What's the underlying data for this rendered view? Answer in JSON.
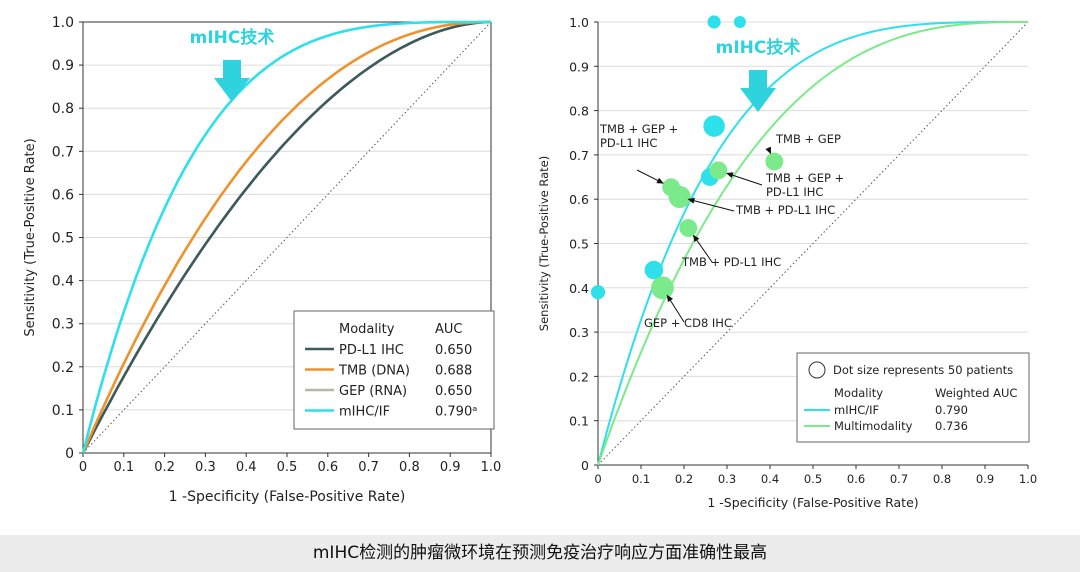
{
  "caption": "mIHC检测的肿瘤微环境在预测免疫治疗响应方面准确性最高",
  "chart_data": [
    {
      "type": "line",
      "xlabel": "1 -Specificity (False-Positive Rate)",
      "ylabel": "Sensitivity (True-Positive Rate)",
      "xlim": [
        0,
        1
      ],
      "ylim": [
        0,
        1
      ],
      "ticks": [
        "0",
        "0.1",
        "0.2",
        "0.3",
        "0.4",
        "0.5",
        "0.6",
        "0.7",
        "0.8",
        "0.9",
        "1.0"
      ],
      "grid": true,
      "legend_position": "bottom-right",
      "annotation": "mIHC技术",
      "legend_header": [
        "Modality",
        "AUC"
      ],
      "series": [
        {
          "name": "PD-L1 IHC",
          "auc": 0.65,
          "auc_label": "0.650",
          "color": "#3d5a5c"
        },
        {
          "name": "TMB (DNA)",
          "auc": 0.688,
          "auc_label": "0.688",
          "color": "#f0922b"
        },
        {
          "name": "GEP (RNA)",
          "auc": 0.65,
          "auc_label": "0.650",
          "color": "#b8b8a0"
        },
        {
          "name": "mIHC/IF",
          "auc": 0.79,
          "auc_label": "0.790ᵃ",
          "color": "#2ee0ea"
        }
      ]
    },
    {
      "type": "scatter",
      "xlabel": "1 -Specificity (False-Positive Rate)",
      "ylabel": "Sensitivity (True-Positive Rate)",
      "xlim": [
        0,
        1
      ],
      "ylim": [
        0,
        1
      ],
      "xticks": [
        "0",
        "0.1",
        "0.2",
        "0.3",
        "0.4",
        "0.5",
        "0.6",
        "0.7",
        "0.8",
        "0.9",
        "1.0"
      ],
      "yticks": [
        "0",
        "0.1",
        "0.2",
        "0.3",
        "0.4",
        "0.5",
        "0.6",
        "0.7",
        "0.8",
        "0.9",
        "1.0"
      ],
      "grid": true,
      "legend_position": "bottom-right",
      "annotation": "mIHC技术",
      "size_note": "Dot size represents 50 patients",
      "legend_header": [
        "Modality",
        "Weighted AUC"
      ],
      "series": [
        {
          "name": "mIHC/IF",
          "auc": 0.79,
          "auc_label": "0.790",
          "color": "#2ee0ea",
          "points": [
            {
              "x": 0,
              "y": 0.39,
              "n": 35
            },
            {
              "x": 0.13,
              "y": 0.44,
              "n": 60
            },
            {
              "x": 0.27,
              "y": 0.765,
              "n": 80
            },
            {
              "x": 0.26,
              "y": 0.65,
              "n": 55
            },
            {
              "x": 0.27,
              "y": 1.0,
              "n": 30
            },
            {
              "x": 0.33,
              "y": 1.0,
              "n": 25
            }
          ]
        },
        {
          "name": "Multimodality",
          "auc": 0.736,
          "auc_label": "0.736",
          "color": "#7aea8a",
          "points": [
            {
              "x": 0.17,
              "y": 0.627,
              "n": 55
            },
            {
              "x": 0.19,
              "y": 0.605,
              "n": 85
            },
            {
              "x": 0.28,
              "y": 0.665,
              "n": 55
            },
            {
              "x": 0.41,
              "y": 0.685,
              "n": 55
            },
            {
              "x": 0.21,
              "y": 0.535,
              "n": 55
            },
            {
              "x": 0.15,
              "y": 0.4,
              "n": 90
            }
          ]
        }
      ],
      "labels": [
        {
          "text": [
            "TMB + GEP +",
            "PD-L1 IHC"
          ],
          "target": [
            0.17,
            0.627
          ]
        },
        {
          "text": [
            "TMB + GEP"
          ],
          "target": [
            0.41,
            0.685
          ]
        },
        {
          "text": [
            "TMB + GEP +",
            "PD-L1 IHC"
          ],
          "target": [
            0.28,
            0.665
          ]
        },
        {
          "text": [
            "TMB + PD-L1 IHC"
          ],
          "target": [
            0.19,
            0.605
          ]
        },
        {
          "text": [
            "TMB + PD-L1 IHC"
          ],
          "target": [
            0.21,
            0.535
          ]
        },
        {
          "text": [
            "GEP + CD8 IHC"
          ],
          "target": [
            0.15,
            0.4
          ]
        }
      ]
    }
  ]
}
